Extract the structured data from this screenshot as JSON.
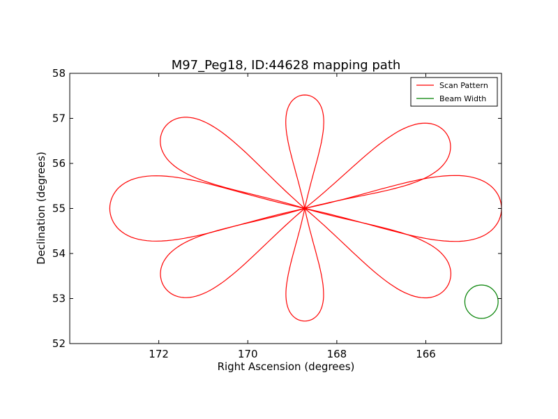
{
  "chart_data": {
    "type": "line",
    "title": "M97_Peg18, ID:44628 mapping path",
    "xlabel": "Right Ascension (degrees)",
    "ylabel": "Declination (degrees)",
    "xlim": [
      174.0,
      164.3
    ],
    "ylim": [
      52,
      58
    ],
    "x_ticks": [
      172,
      170,
      168,
      166
    ],
    "y_ticks": [
      52,
      53,
      54,
      55,
      56,
      57,
      58
    ],
    "grid": false,
    "legend_position": "top-right",
    "center": {
      "x": 168.72,
      "y": 55.0
    },
    "series": [
      {
        "name": "Scan Pattern",
        "color": "#ff0000",
        "style": "rose-curve",
        "petal_count": 8,
        "petal_tips": [
          {
            "x": 164.3,
            "y": 55.0
          },
          {
            "x": 165.5,
            "y": 56.6
          },
          {
            "x": 168.72,
            "y": 57.52
          },
          {
            "x": 171.9,
            "y": 56.75
          },
          {
            "x": 173.1,
            "y": 55.0
          },
          {
            "x": 171.9,
            "y": 53.3
          },
          {
            "x": 168.72,
            "y": 52.5
          },
          {
            "x": 165.5,
            "y": 53.3
          }
        ]
      },
      {
        "name": "Beam Width",
        "color": "#008000",
        "style": "circle",
        "center": {
          "x": 164.75,
          "y": 52.93
        },
        "radius_deg_y": 0.37
      }
    ]
  }
}
